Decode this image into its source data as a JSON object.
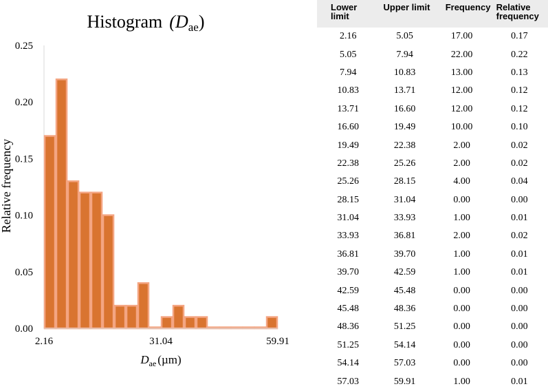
{
  "chart_data": {
    "type": "bar",
    "title": "Histogram",
    "title_var": "D",
    "title_var_sub": "ae",
    "xlabel_var": "D",
    "xlabel_sub": "ae",
    "xlabel_unit": "(µm)",
    "ylabel": "Relative frequency",
    "ylim": [
      0,
      0.25
    ],
    "yticks": [
      "0.00",
      "0.05",
      "0.10",
      "0.15",
      "0.20",
      "0.25"
    ],
    "xticks": [
      "2.16",
      "31.04",
      "59.91"
    ],
    "bins": [
      {
        "lower": 2.16,
        "upper": 5.05,
        "value": 0.17
      },
      {
        "lower": 5.05,
        "upper": 7.94,
        "value": 0.22
      },
      {
        "lower": 7.94,
        "upper": 10.83,
        "value": 0.13
      },
      {
        "lower": 10.83,
        "upper": 13.71,
        "value": 0.12
      },
      {
        "lower": 13.71,
        "upper": 16.6,
        "value": 0.12
      },
      {
        "lower": 16.6,
        "upper": 19.49,
        "value": 0.1
      },
      {
        "lower": 19.49,
        "upper": 22.38,
        "value": 0.02
      },
      {
        "lower": 22.38,
        "upper": 25.26,
        "value": 0.02
      },
      {
        "lower": 25.26,
        "upper": 28.15,
        "value": 0.04
      },
      {
        "lower": 28.15,
        "upper": 31.04,
        "value": 0.0
      },
      {
        "lower": 31.04,
        "upper": 33.93,
        "value": 0.01
      },
      {
        "lower": 33.93,
        "upper": 36.81,
        "value": 0.02
      },
      {
        "lower": 36.81,
        "upper": 39.7,
        "value": 0.01
      },
      {
        "lower": 39.7,
        "upper": 42.59,
        "value": 0.01
      },
      {
        "lower": 42.59,
        "upper": 45.48,
        "value": 0.0
      },
      {
        "lower": 45.48,
        "upper": 48.36,
        "value": 0.0
      },
      {
        "lower": 48.36,
        "upper": 51.25,
        "value": 0.0
      },
      {
        "lower": 51.25,
        "upper": 54.14,
        "value": 0.0
      },
      {
        "lower": 54.14,
        "upper": 57.03,
        "value": 0.0
      },
      {
        "lower": 57.03,
        "upper": 59.91,
        "value": 0.01
      }
    ],
    "bar_fill": "#D97430",
    "bar_stroke": "#F4A582",
    "grid": false
  },
  "table": {
    "headers": [
      "Lower limit",
      "Upper limit",
      "Frequency",
      "Relative frequency"
    ],
    "rows": [
      [
        "2.16",
        "5.05",
        "17.00",
        "0.17"
      ],
      [
        "5.05",
        "7.94",
        "22.00",
        "0.22"
      ],
      [
        "7.94",
        "10.83",
        "13.00",
        "0.13"
      ],
      [
        "10.83",
        "13.71",
        "12.00",
        "0.12"
      ],
      [
        "13.71",
        "16.60",
        "12.00",
        "0.12"
      ],
      [
        "16.60",
        "19.49",
        "10.00",
        "0.10"
      ],
      [
        "19.49",
        "22.38",
        "2.00",
        "0.02"
      ],
      [
        "22.38",
        "25.26",
        "2.00",
        "0.02"
      ],
      [
        "25.26",
        "28.15",
        "4.00",
        "0.04"
      ],
      [
        "28.15",
        "31.04",
        "0.00",
        "0.00"
      ],
      [
        "31.04",
        "33.93",
        "1.00",
        "0.01"
      ],
      [
        "33.93",
        "36.81",
        "2.00",
        "0.02"
      ],
      [
        "36.81",
        "39.70",
        "1.00",
        "0.01"
      ],
      [
        "39.70",
        "42.59",
        "1.00",
        "0.01"
      ],
      [
        "42.59",
        "45.48",
        "0.00",
        "0.00"
      ],
      [
        "45.48",
        "48.36",
        "0.00",
        "0.00"
      ],
      [
        "48.36",
        "51.25",
        "0.00",
        "0.00"
      ],
      [
        "51.25",
        "54.14",
        "0.00",
        "0.00"
      ],
      [
        "54.14",
        "57.03",
        "0.00",
        "0.00"
      ],
      [
        "57.03",
        "59.91",
        "1.00",
        "0.01"
      ]
    ],
    "header_bg": "#ECECEC"
  }
}
